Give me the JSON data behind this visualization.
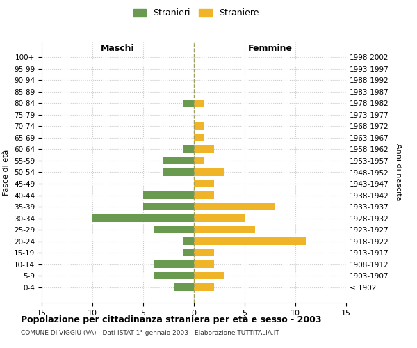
{
  "age_groups": [
    "100+",
    "95-99",
    "90-94",
    "85-89",
    "80-84",
    "75-79",
    "70-74",
    "65-69",
    "60-64",
    "55-59",
    "50-54",
    "45-49",
    "40-44",
    "35-39",
    "30-34",
    "25-29",
    "20-24",
    "15-19",
    "10-14",
    "5-9",
    "0-4"
  ],
  "birth_years": [
    "≤ 1902",
    "1903-1907",
    "1908-1912",
    "1913-1917",
    "1918-1922",
    "1923-1927",
    "1928-1932",
    "1933-1937",
    "1938-1942",
    "1943-1947",
    "1948-1952",
    "1953-1957",
    "1958-1962",
    "1963-1967",
    "1968-1972",
    "1973-1977",
    "1978-1982",
    "1983-1987",
    "1988-1992",
    "1993-1997",
    "1998-2002"
  ],
  "males": [
    0,
    0,
    0,
    0,
    1,
    0,
    0,
    0,
    1,
    3,
    3,
    0,
    5,
    5,
    10,
    4,
    1,
    1,
    4,
    4,
    2
  ],
  "females": [
    0,
    0,
    0,
    0,
    1,
    0,
    1,
    1,
    2,
    1,
    3,
    2,
    2,
    8,
    5,
    6,
    11,
    2,
    2,
    3,
    2
  ],
  "male_color": "#6a9a4f",
  "female_color": "#f0b429",
  "male_label": "Stranieri",
  "female_label": "Straniere",
  "title": "Popolazione per cittadinanza straniera per età e sesso - 2003",
  "subtitle": "COMUNE DI VIGGIÙ (VA) - Dati ISTAT 1° gennaio 2003 - Elaborazione TUTTITALIA.IT",
  "xlabel_left": "Maschi",
  "xlabel_right": "Femmine",
  "ylabel_left": "Fasce di età",
  "ylabel_right": "Anni di nascita",
  "xlim": 15,
  "background_color": "#ffffff",
  "grid_color": "#cccccc"
}
